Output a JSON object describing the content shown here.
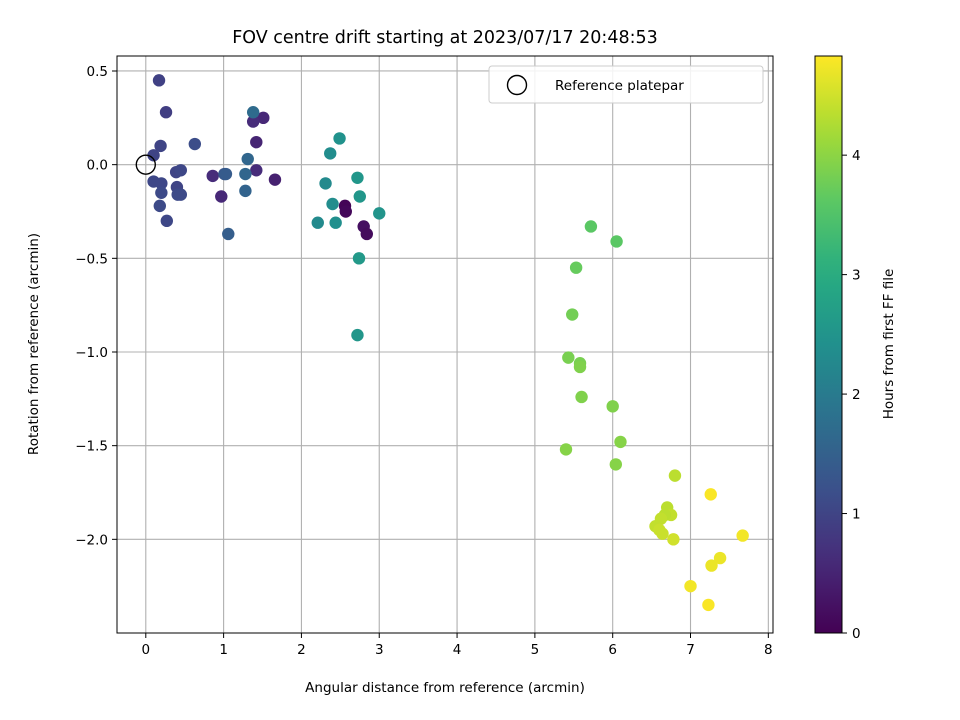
{
  "chart_data": {
    "type": "scatter",
    "title": "FOV centre drift starting at 2023/07/17 20:48:53",
    "xlabel": "Angular distance from reference (arcmin)",
    "ylabel": "Rotation from reference (arcmin)",
    "xlim": [
      -0.37,
      8.06
    ],
    "ylim": [
      -2.5,
      0.58
    ],
    "xticks": [
      0,
      1,
      2,
      3,
      4,
      5,
      6,
      7,
      8
    ],
    "xtick_labels": [
      "0",
      "1",
      "2",
      "3",
      "4",
      "5",
      "6",
      "7",
      "8"
    ],
    "yticks": [
      0.5,
      0.0,
      -0.5,
      -1.0,
      -1.5,
      -2.0
    ],
    "ytick_labels": [
      "0.5",
      "0.0",
      "−0.5",
      "−1.0",
      "−1.5",
      "−2.0"
    ],
    "grid": true,
    "legend": {
      "label": "Reference platepar",
      "placement": "top-right"
    },
    "reference_point": {
      "x": 0,
      "y": 0
    },
    "colorbar": {
      "label": "Hours from first FF file",
      "cmap": "viridis",
      "range": [
        0,
        4.83
      ],
      "ticks": [
        0,
        1,
        2,
        3,
        4
      ],
      "tick_labels": [
        "0",
        "1",
        "2",
        "3",
        "4"
      ]
    },
    "points": [
      {
        "x": 2.56,
        "y": -0.22,
        "h": 0.05
      },
      {
        "x": 2.57,
        "y": -0.25,
        "h": 0.1
      },
      {
        "x": 2.8,
        "y": -0.33,
        "h": 0.2
      },
      {
        "x": 2.84,
        "y": -0.37,
        "h": 0.15
      },
      {
        "x": 1.66,
        "y": -0.08,
        "h": 0.45
      },
      {
        "x": 1.42,
        "y": 0.12,
        "h": 0.5
      },
      {
        "x": 1.51,
        "y": 0.25,
        "h": 0.55
      },
      {
        "x": 1.38,
        "y": 0.23,
        "h": 0.6
      },
      {
        "x": 0.97,
        "y": -0.17,
        "h": 0.55
      },
      {
        "x": 0.86,
        "y": -0.06,
        "h": 0.6
      },
      {
        "x": 1.42,
        "y": -0.03,
        "h": 0.6
      },
      {
        "x": 0.17,
        "y": 0.45,
        "h": 0.95
      },
      {
        "x": 0.26,
        "y": 0.28,
        "h": 0.9
      },
      {
        "x": 0.1,
        "y": 0.05,
        "h": 1.0
      },
      {
        "x": 0.19,
        "y": 0.1,
        "h": 1.0
      },
      {
        "x": 0.1,
        "y": -0.09,
        "h": 1.05
      },
      {
        "x": 0.2,
        "y": -0.1,
        "h": 1.05
      },
      {
        "x": 0.2,
        "y": -0.15,
        "h": 1.1
      },
      {
        "x": 0.18,
        "y": -0.22,
        "h": 1.1
      },
      {
        "x": 0.27,
        "y": -0.3,
        "h": 1.05
      },
      {
        "x": 0.39,
        "y": -0.04,
        "h": 1.0
      },
      {
        "x": 0.45,
        "y": -0.03,
        "h": 1.05
      },
      {
        "x": 0.4,
        "y": -0.12,
        "h": 1.0
      },
      {
        "x": 0.41,
        "y": -0.16,
        "h": 1.1
      },
      {
        "x": 0.45,
        "y": -0.16,
        "h": 1.1
      },
      {
        "x": 0.63,
        "y": 0.11,
        "h": 1.15
      },
      {
        "x": 1.01,
        "y": -0.05,
        "h": 1.3
      },
      {
        "x": 1.03,
        "y": -0.05,
        "h": 1.4
      },
      {
        "x": 1.06,
        "y": -0.37,
        "h": 1.45
      },
      {
        "x": 1.28,
        "y": -0.14,
        "h": 1.55
      },
      {
        "x": 1.28,
        "y": -0.05,
        "h": 1.6
      },
      {
        "x": 1.31,
        "y": 0.03,
        "h": 1.6
      },
      {
        "x": 1.38,
        "y": 0.28,
        "h": 1.7
      },
      {
        "x": 2.21,
        "y": -0.31,
        "h": 2.3
      },
      {
        "x": 2.31,
        "y": -0.1,
        "h": 2.3
      },
      {
        "x": 2.37,
        "y": 0.06,
        "h": 2.35
      },
      {
        "x": 2.4,
        "y": -0.21,
        "h": 2.35
      },
      {
        "x": 2.44,
        "y": -0.31,
        "h": 2.4
      },
      {
        "x": 2.49,
        "y": 0.14,
        "h": 2.45
      },
      {
        "x": 2.72,
        "y": -0.07,
        "h": 2.55
      },
      {
        "x": 2.75,
        "y": -0.17,
        "h": 2.55
      },
      {
        "x": 2.74,
        "y": -0.5,
        "h": 2.6
      },
      {
        "x": 2.72,
        "y": -0.91,
        "h": 2.55
      },
      {
        "x": 3.0,
        "y": -0.26,
        "h": 2.5
      },
      {
        "x": 5.72,
        "y": -0.33,
        "h": 3.6
      },
      {
        "x": 6.05,
        "y": -0.41,
        "h": 3.6
      },
      {
        "x": 5.53,
        "y": -0.55,
        "h": 3.7
      },
      {
        "x": 5.48,
        "y": -0.8,
        "h": 3.8
      },
      {
        "x": 5.43,
        "y": -1.03,
        "h": 3.85
      },
      {
        "x": 5.58,
        "y": -1.06,
        "h": 3.85
      },
      {
        "x": 5.58,
        "y": -1.08,
        "h": 3.9
      },
      {
        "x": 5.6,
        "y": -1.24,
        "h": 3.9
      },
      {
        "x": 6.0,
        "y": -1.29,
        "h": 3.9
      },
      {
        "x": 6.1,
        "y": -1.48,
        "h": 3.95
      },
      {
        "x": 5.4,
        "y": -1.52,
        "h": 3.95
      },
      {
        "x": 6.04,
        "y": -1.6,
        "h": 3.95
      },
      {
        "x": 6.8,
        "y": -1.66,
        "h": 4.35
      },
      {
        "x": 6.7,
        "y": -1.83,
        "h": 4.35
      },
      {
        "x": 6.75,
        "y": -1.87,
        "h": 4.4
      },
      {
        "x": 6.67,
        "y": -1.87,
        "h": 4.35
      },
      {
        "x": 6.62,
        "y": -1.89,
        "h": 4.4
      },
      {
        "x": 6.55,
        "y": -1.93,
        "h": 4.4
      },
      {
        "x": 6.6,
        "y": -1.95,
        "h": 4.45
      },
      {
        "x": 6.64,
        "y": -1.97,
        "h": 4.45
      },
      {
        "x": 6.78,
        "y": -2.0,
        "h": 4.5
      },
      {
        "x": 7.26,
        "y": -1.76,
        "h": 4.8
      },
      {
        "x": 7.67,
        "y": -1.98,
        "h": 4.75
      },
      {
        "x": 7.38,
        "y": -2.1,
        "h": 4.7
      },
      {
        "x": 7.27,
        "y": -2.14,
        "h": 4.7
      },
      {
        "x": 7.0,
        "y": -2.25,
        "h": 4.75
      },
      {
        "x": 7.23,
        "y": -2.35,
        "h": 4.8
      }
    ]
  }
}
